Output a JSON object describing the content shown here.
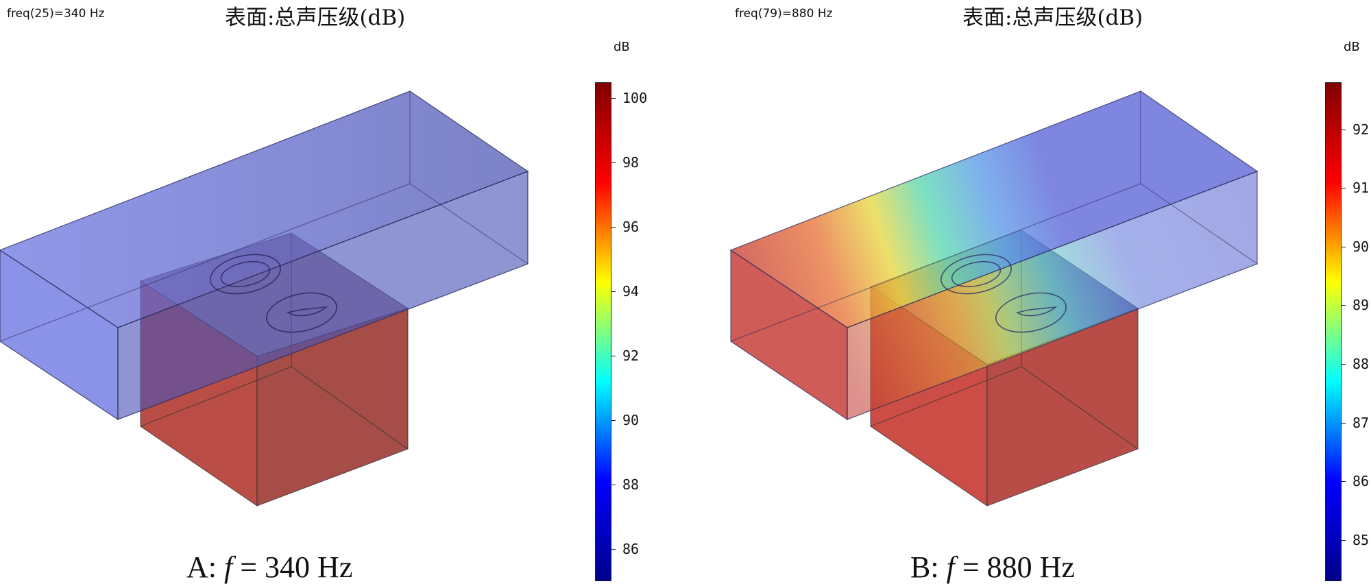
{
  "panels": [
    {
      "freq_label": "freq(25)=340 Hz",
      "title": "表面:总声压级(dB)",
      "caption_prefix": "A: ",
      "caption_f": "f",
      "caption_suffix": " = 340 Hz",
      "unit": "dB",
      "colorbar": {
        "ticks": [
          "100",
          "98",
          "96",
          "94",
          "92",
          "90",
          "88",
          "86"
        ],
        "range": [
          85,
          100.5
        ],
        "colors": [
          "#800000",
          "#ff0000",
          "#ffff00",
          "#00ffff",
          "#0000ff",
          "#00008b"
        ]
      },
      "surface_colors": {
        "duct": "#5a64d8",
        "box": "#b33a30"
      }
    },
    {
      "freq_label": "freq(79)=880 Hz",
      "title": "表面:总声压级(dB)",
      "caption_prefix": "B: ",
      "caption_f": "f",
      "caption_suffix": " = 880 Hz",
      "unit": "dB",
      "colorbar": {
        "ticks": [
          "92",
          "91",
          "90",
          "89",
          "88",
          "87",
          "86",
          "85"
        ],
        "range": [
          84.3,
          92.8
        ],
        "colors": [
          "#800000",
          "#ff0000",
          "#ffff00",
          "#00ffff",
          "#0000ff",
          "#00008b"
        ]
      },
      "surface_colors": {
        "duct": "#5a64d8",
        "box": "#c53a30"
      }
    }
  ]
}
